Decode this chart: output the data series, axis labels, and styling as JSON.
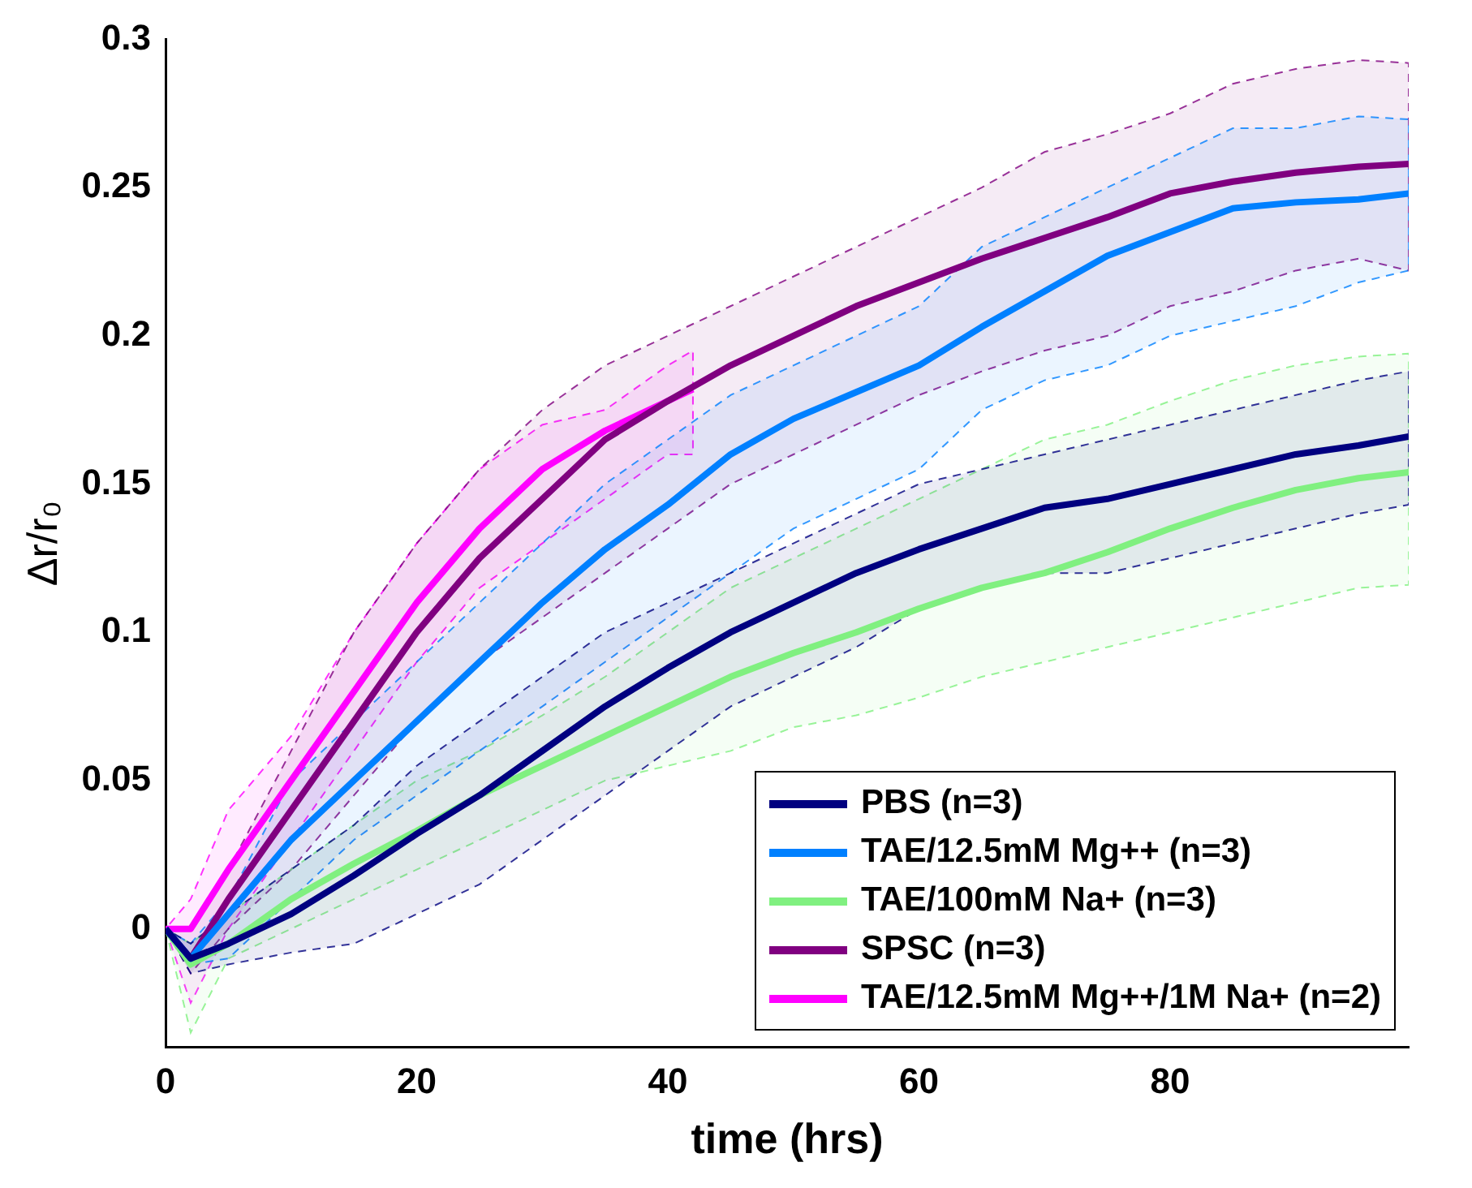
{
  "chart_data": {
    "type": "line",
    "xlabel": "time (hrs)",
    "ylabel": "Δr/r₀",
    "xlim": [
      0,
      99
    ],
    "xticks": [
      0,
      20,
      40,
      60,
      80
    ],
    "ylim": [
      -0.04,
      0.3
    ],
    "yticks": [
      0,
      0.05,
      0.1,
      0.15,
      0.2,
      0.25,
      0.3
    ],
    "grid": false,
    "legend": "bottom right",
    "marker": "none",
    "line_style": "solid",
    "x": [
      0,
      2,
      5,
      10,
      15,
      20,
      25,
      30,
      35,
      40,
      45,
      50,
      55,
      60,
      65,
      70,
      75,
      80,
      85,
      90,
      95,
      99
    ],
    "series": [
      {
        "name": "PBS (n=3)",
        "color": "#000080",
        "values": [
          0,
          -0.01,
          -0.005,
          0.005,
          0.018,
          0.032,
          0.045,
          0.06,
          0.075,
          0.088,
          0.1,
          0.11,
          0.12,
          0.128,
          0.135,
          0.142,
          0.145,
          0.15,
          0.155,
          0.16,
          0.163,
          0.166
        ],
        "lower": [
          0,
          -0.015,
          -0.012,
          -0.008,
          -0.005,
          0.005,
          0.015,
          0.03,
          0.045,
          0.06,
          0.075,
          0.085,
          0.095,
          0.108,
          0.115,
          0.12,
          0.12,
          0.125,
          0.13,
          0.135,
          0.14,
          0.143
        ],
        "upper": [
          0,
          -0.005,
          0.005,
          0.02,
          0.035,
          0.055,
          0.07,
          0.085,
          0.1,
          0.11,
          0.12,
          0.13,
          0.14,
          0.15,
          0.155,
          0.16,
          0.165,
          0.17,
          0.175,
          0.18,
          0.185,
          0.188
        ]
      },
      {
        "name": "TAE/12.5mM Mg++ (n=3)",
        "color": "#0080ff",
        "values": [
          0,
          -0.01,
          0.005,
          0.03,
          0.05,
          0.07,
          0.09,
          0.11,
          0.128,
          0.143,
          0.16,
          0.172,
          0.181,
          0.19,
          0.203,
          0.215,
          0.227,
          0.235,
          0.243,
          0.245,
          0.246,
          0.248
        ],
        "lower": [
          0,
          -0.012,
          -0.01,
          0.01,
          0.03,
          0.045,
          0.06,
          0.075,
          0.09,
          0.105,
          0.12,
          0.135,
          0.145,
          0.155,
          0.175,
          0.185,
          0.19,
          0.2,
          0.205,
          0.21,
          0.218,
          0.222
        ],
        "upper": [
          0,
          -0.005,
          0.01,
          0.05,
          0.07,
          0.09,
          0.11,
          0.13,
          0.15,
          0.165,
          0.18,
          0.19,
          0.2,
          0.21,
          0.23,
          0.24,
          0.25,
          0.26,
          0.27,
          0.27,
          0.274,
          0.273
        ]
      },
      {
        "name": "TAE/100mM Na+ (n=3)",
        "color": "#80f080",
        "values": [
          0,
          -0.012,
          -0.005,
          0.01,
          0.022,
          0.033,
          0.045,
          0.055,
          0.065,
          0.075,
          0.085,
          0.093,
          0.1,
          0.108,
          0.115,
          0.12,
          0.127,
          0.135,
          0.142,
          0.148,
          0.152,
          0.154
        ],
        "lower": [
          0,
          -0.035,
          -0.01,
          0,
          0.01,
          0.02,
          0.03,
          0.04,
          0.05,
          0.055,
          0.06,
          0.068,
          0.072,
          0.078,
          0.085,
          0.09,
          0.095,
          0.1,
          0.105,
          0.11,
          0.115,
          0.116
        ],
        "upper": [
          0,
          -0.005,
          0.005,
          0.02,
          0.035,
          0.05,
          0.06,
          0.072,
          0.085,
          0.1,
          0.115,
          0.125,
          0.135,
          0.145,
          0.155,
          0.165,
          0.17,
          0.178,
          0.185,
          0.19,
          0.193,
          0.194
        ]
      },
      {
        "name": "SPSC (n=3)",
        "color": "#800080",
        "values": [
          0,
          -0.01,
          0.01,
          0.04,
          0.07,
          0.1,
          0.125,
          0.145,
          0.165,
          0.178,
          0.19,
          0.2,
          0.21,
          0.218,
          0.226,
          0.233,
          0.24,
          0.248,
          0.252,
          0.255,
          0.257,
          0.258
        ],
        "lower": [
          0,
          -0.015,
          0,
          0.02,
          0.045,
          0.07,
          0.09,
          0.105,
          0.12,
          0.135,
          0.15,
          0.16,
          0.17,
          0.18,
          0.188,
          0.195,
          0.2,
          0.21,
          0.215,
          0.222,
          0.226,
          0.222
        ],
        "upper": [
          0,
          0,
          0.02,
          0.06,
          0.1,
          0.13,
          0.155,
          0.175,
          0.19,
          0.2,
          0.21,
          0.22,
          0.23,
          0.24,
          0.25,
          0.262,
          0.268,
          0.275,
          0.285,
          0.29,
          0.293,
          0.292
        ]
      },
      {
        "name": "TAE/12.5mM Mg++/1M Na+ (n=2)",
        "color": "#ff00ff",
        "x": [
          0,
          2,
          5,
          10,
          15,
          20,
          25,
          30,
          35,
          40,
          42
        ],
        "values": [
          0,
          0,
          0.02,
          0.05,
          0.08,
          0.11,
          0.135,
          0.155,
          0.168,
          0.178,
          0.182
        ],
        "lower": [
          0,
          -0.025,
          0,
          0.03,
          0.06,
          0.09,
          0.115,
          0.13,
          0.145,
          0.16,
          0.16
        ],
        "upper": [
          0,
          0.01,
          0.04,
          0.065,
          0.1,
          0.13,
          0.155,
          0.17,
          0.175,
          0.19,
          0.195
        ]
      }
    ]
  }
}
